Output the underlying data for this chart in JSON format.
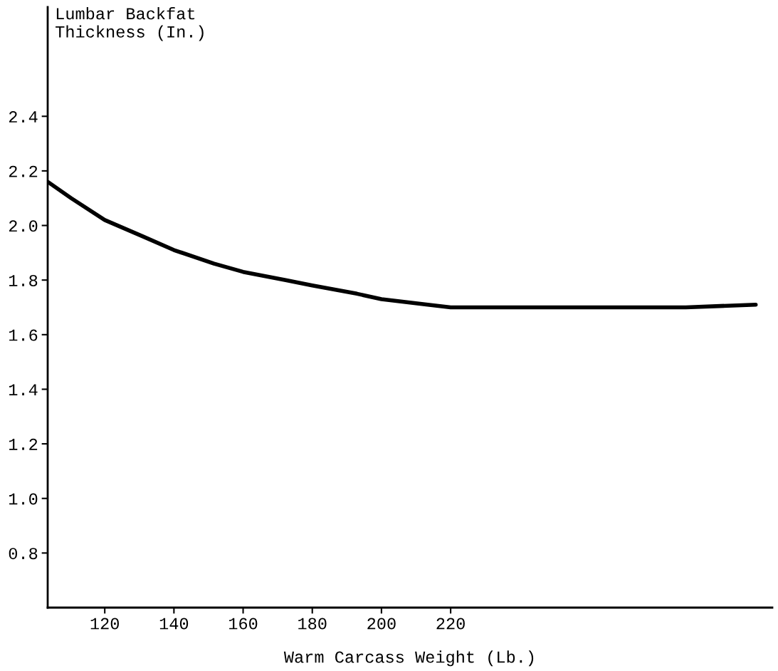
{
  "chart_data": {
    "type": "line",
    "xlabel": "Warm Carcass Weight (Lb.)",
    "ylabel": "Lumbar Backfat\nThickness (In.)",
    "x": [
      103.5,
      110.3,
      120,
      131,
      140,
      151.6,
      160,
      172.3,
      180,
      192.9,
      200,
      213.4,
      220,
      234.3,
      254.9,
      275.6,
      288,
      308.2
    ],
    "series": [
      {
        "color": "#000000",
        "values": [
          2.16,
          2.1,
          2.02,
          1.96,
          1.91,
          1.86,
          1.83,
          1.8,
          1.78,
          1.75,
          1.73,
          1.71,
          1.7,
          1.7,
          1.7,
          1.7,
          1.7,
          1.71
        ]
      }
    ],
    "xlim": [
      103.5,
      313
    ],
    "ylim": [
      0.6,
      2.8
    ],
    "xticks": [
      120,
      140,
      160,
      180,
      200,
      220
    ],
    "yticks": [
      0.8,
      {
        "value": 1.0,
        "label": "1.0"
      },
      1.2,
      1.4,
      1.6,
      1.8,
      {
        "value": 2.0,
        "label": "2.0"
      },
      2.2,
      2.4
    ],
    "grid": false,
    "legend": false,
    "marker": "none",
    "line_style": "solid"
  }
}
